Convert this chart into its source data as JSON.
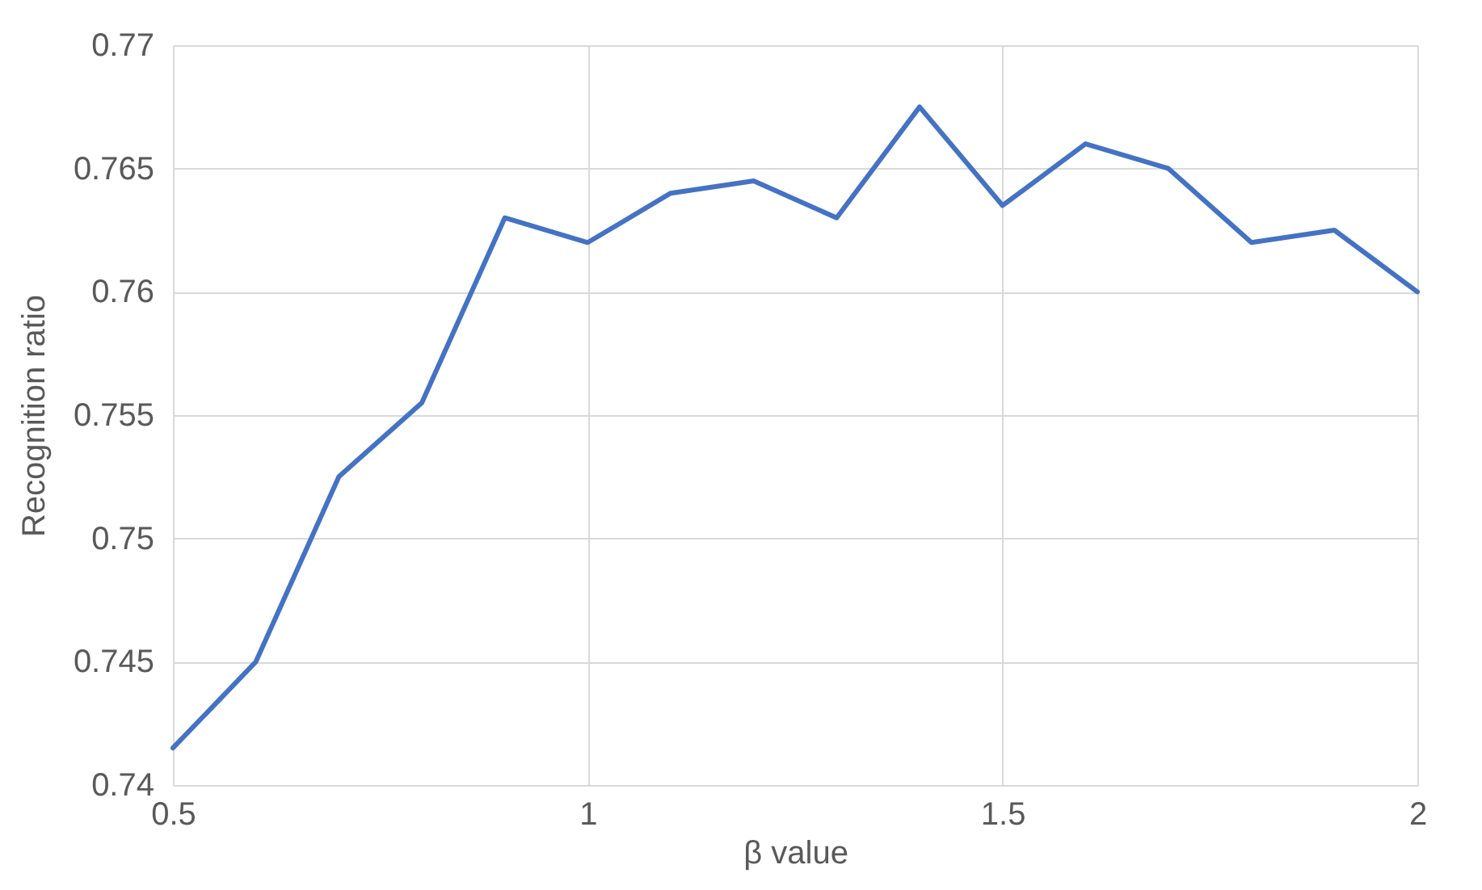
{
  "chart_data": {
    "type": "line",
    "xlabel": "β value",
    "ylabel": "Recognition ratio",
    "x": [
      0.5,
      0.6,
      0.7,
      0.8,
      0.9,
      1.0,
      1.1,
      1.2,
      1.3,
      1.4,
      1.5,
      1.6,
      1.7,
      1.8,
      1.9,
      2.0
    ],
    "series": [
      {
        "color": "#4472c4",
        "values": [
          0.7415,
          0.745,
          0.7525,
          0.7555,
          0.763,
          0.762,
          0.764,
          0.7645,
          0.763,
          0.7675,
          0.7635,
          0.766,
          0.765,
          0.762,
          0.7625,
          0.76
        ]
      }
    ],
    "xlim": [
      0.5,
      2
    ],
    "xticks": [
      0.5,
      1,
      1.5,
      2
    ],
    "ylim": [
      0.74,
      0.77
    ],
    "yticks": [
      0.74,
      0.745,
      0.75,
      0.755,
      0.76,
      0.765,
      0.77
    ],
    "grid": true,
    "marker": "none",
    "line_style": "solid"
  }
}
